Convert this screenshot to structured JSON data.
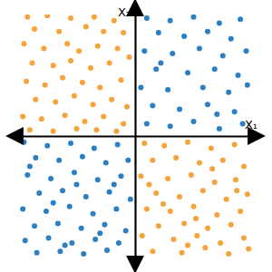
{
  "chart_data": {
    "type": "scatter",
    "x_label": "X₁",
    "y_label": "X₂",
    "xlim": [
      -1,
      1
    ],
    "ylim": [
      -1,
      1
    ],
    "tick_labels": false,
    "grid": false,
    "series": [
      {
        "color": "#f5a33a",
        "x": [
          -0.92,
          -0.75,
          -0.55,
          -0.35,
          -0.18,
          -0.86,
          -0.65,
          -0.42,
          -0.27,
          -0.1,
          -0.95,
          -0.78,
          -0.58,
          -0.48,
          -0.32,
          -0.15,
          -0.05,
          -0.88,
          -0.7,
          -0.55,
          -0.38,
          -0.22,
          -0.93,
          -0.77,
          -0.62,
          -0.45,
          -0.3,
          -0.12,
          -0.85,
          -0.68,
          -0.52,
          -0.36,
          -0.2,
          -0.07,
          -0.96,
          -0.8,
          -0.6,
          -0.43,
          -0.27,
          -0.1,
          -0.9,
          -0.7,
          -0.5,
          -0.33,
          -0.16,
          0.08,
          0.25,
          0.45,
          0.65,
          0.85,
          0.15,
          0.35,
          0.55,
          0.75,
          0.93,
          0.05,
          0.28,
          0.48,
          0.68,
          0.86,
          0.18,
          0.38,
          0.58,
          0.78,
          0.96,
          0.1,
          0.3,
          0.5,
          0.7,
          0.9,
          0.2,
          0.42,
          0.62,
          0.82,
          0.06,
          0.33,
          0.53,
          0.73,
          0.93,
          0.15,
          0.4,
          0.6,
          0.8,
          0.97,
          0.24,
          0.66,
          0.45,
          0.87,
          0.12,
          0.52
        ],
        "values": [
          0.98,
          0.99,
          0.97,
          0.98,
          0.95,
          0.88,
          0.86,
          0.9,
          0.86,
          0.85,
          0.76,
          0.72,
          0.76,
          0.7,
          0.74,
          0.72,
          0.65,
          0.6,
          0.58,
          0.62,
          0.56,
          0.6,
          0.45,
          0.42,
          0.48,
          0.44,
          0.4,
          0.46,
          0.3,
          0.28,
          0.33,
          0.26,
          0.3,
          0.24,
          0.16,
          0.14,
          0.17,
          0.12,
          0.16,
          0.1,
          0.05,
          0.04,
          0.06,
          0.05,
          0.04,
          -0.06,
          -0.08,
          -0.05,
          -0.1,
          -0.07,
          -0.2,
          -0.18,
          -0.22,
          -0.2,
          -0.25,
          -0.33,
          -0.35,
          -0.32,
          -0.38,
          -0.36,
          -0.47,
          -0.5,
          -0.45,
          -0.52,
          -0.48,
          -0.6,
          -0.62,
          -0.58,
          -0.65,
          -0.62,
          -0.74,
          -0.72,
          -0.76,
          -0.73,
          -0.82,
          -0.85,
          -0.82,
          -0.88,
          -0.84,
          -0.95,
          -0.96,
          -0.92,
          -0.97,
          -0.93,
          -0.56,
          -0.27,
          -0.9,
          -0.45,
          -0.4,
          -0.68
        ]
      },
      {
        "color": "#2b7fc2",
        "x": [
          0.1,
          0.3,
          0.5,
          0.72,
          0.9,
          0.2,
          0.42,
          0.62,
          0.82,
          0.08,
          0.32,
          0.55,
          0.75,
          0.95,
          0.18,
          0.45,
          0.68,
          0.88,
          0.05,
          0.28,
          0.58,
          0.8,
          0.96,
          0.15,
          0.38,
          0.62,
          0.85,
          0.1,
          0.3,
          0.5,
          0.72,
          0.92,
          0.22,
          0.7,
          -0.95,
          -0.75,
          -0.55,
          -0.35,
          -0.15,
          -0.85,
          -0.65,
          -0.45,
          -0.25,
          -0.06,
          -0.92,
          -0.72,
          -0.52,
          -0.32,
          -0.12,
          -0.82,
          -0.62,
          -0.42,
          -0.22,
          -0.04,
          -0.96,
          -0.76,
          -0.56,
          -0.36,
          -0.16,
          -0.86,
          -0.66,
          -0.46,
          -0.26,
          -0.08,
          -0.94,
          -0.74,
          -0.54,
          -0.34,
          -0.14,
          -0.84,
          -0.64,
          -0.44,
          -0.24,
          -0.5,
          -0.7,
          -0.3,
          -0.9,
          -0.18,
          -0.6
        ],
        "values": [
          0.97,
          0.95,
          0.98,
          0.93,
          0.96,
          0.85,
          0.82,
          0.86,
          0.8,
          0.7,
          0.68,
          0.72,
          0.66,
          0.7,
          0.55,
          0.52,
          0.55,
          0.5,
          0.4,
          0.38,
          0.4,
          0.36,
          0.42,
          0.25,
          0.22,
          0.26,
          0.2,
          0.1,
          0.08,
          0.12,
          0.06,
          0.1,
          0.6,
          0.18,
          -0.05,
          -0.08,
          -0.06,
          -0.1,
          -0.07,
          -0.18,
          -0.2,
          -0.17,
          -0.22,
          -0.2,
          -0.32,
          -0.35,
          -0.3,
          -0.36,
          -0.33,
          -0.47,
          -0.45,
          -0.5,
          -0.46,
          -0.52,
          -0.6,
          -0.62,
          -0.58,
          -0.64,
          -0.6,
          -0.74,
          -0.72,
          -0.76,
          -0.73,
          -0.78,
          -0.86,
          -0.84,
          -0.88,
          -0.85,
          -0.88,
          -0.96,
          -0.95,
          -0.97,
          -0.94,
          -0.4,
          -0.55,
          -0.8,
          -0.25,
          -0.4,
          -0.9
        ]
      }
    ]
  }
}
